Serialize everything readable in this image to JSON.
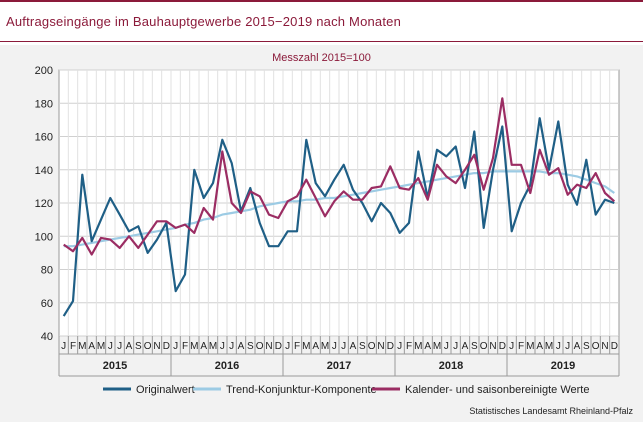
{
  "title": "Auftragseingänge im Bauhauptgewerbe 2015−2019 nach Monaten",
  "source": "Statistisches Landesamt Rheinland-Pfalz",
  "chart_data": {
    "type": "line",
    "subtitle": "Messzahl 2015=100",
    "ylim": [
      40,
      200
    ],
    "yticks": [
      40,
      60,
      80,
      100,
      120,
      140,
      160,
      180,
      200
    ],
    "grid": true,
    "legend_position": "bottom",
    "month_labels": [
      "J",
      "F",
      "M",
      "A",
      "M",
      "J",
      "J",
      "A",
      "S",
      "O",
      "N",
      "D"
    ],
    "years": [
      "2015",
      "2016",
      "2017",
      "2018",
      "2019"
    ],
    "series": [
      {
        "name": "Originalwert",
        "color": "#1f5f86",
        "width": 2.2,
        "values": [
          52,
          61,
          137,
          97,
          110,
          123,
          113,
          103,
          106,
          90,
          98,
          108,
          67,
          77,
          140,
          123,
          132,
          158,
          144,
          115,
          129,
          108,
          94,
          94,
          103,
          103,
          158,
          132,
          124,
          134,
          143,
          128,
          120,
          109,
          120,
          114,
          102,
          108,
          151,
          123,
          152,
          148,
          154,
          129,
          163,
          105,
          140,
          166,
          103,
          120,
          131,
          171,
          140,
          169,
          131,
          119,
          146,
          113,
          122,
          120
        ]
      },
      {
        "name": "Trend-Konjunktur-Komponente",
        "color": "#9ccbe4",
        "width": 2.2,
        "values": [
          94,
          94,
          95,
          96,
          97,
          98,
          99,
          100,
          101,
          102,
          103,
          104,
          105,
          107,
          108,
          110,
          111,
          113,
          114,
          115,
          116,
          118,
          119,
          120,
          121,
          121,
          122,
          122,
          123,
          123,
          124,
          125,
          126,
          127,
          128,
          129,
          130,
          131,
          132,
          133,
          134,
          135,
          136,
          137,
          138,
          138,
          139,
          139,
          139,
          139,
          139,
          139,
          138,
          138,
          137,
          136,
          134,
          132,
          130,
          126
        ]
      },
      {
        "name": "Kalender- und saisonbereinigte Werte",
        "color": "#9b2d63",
        "width": 2.2,
        "values": [
          95,
          91,
          99,
          89,
          99,
          98,
          93,
          100,
          93,
          101,
          109,
          109,
          105,
          107,
          102,
          117,
          110,
          151,
          120,
          114,
          127,
          124,
          113,
          111,
          121,
          124,
          134,
          123,
          112,
          121,
          127,
          122,
          122,
          129,
          130,
          142,
          129,
          128,
          135,
          122,
          143,
          136,
          132,
          140,
          149,
          128,
          147,
          183,
          143,
          143,
          126,
          152,
          137,
          141,
          125,
          131,
          129,
          138,
          126,
          121
        ]
      }
    ]
  }
}
